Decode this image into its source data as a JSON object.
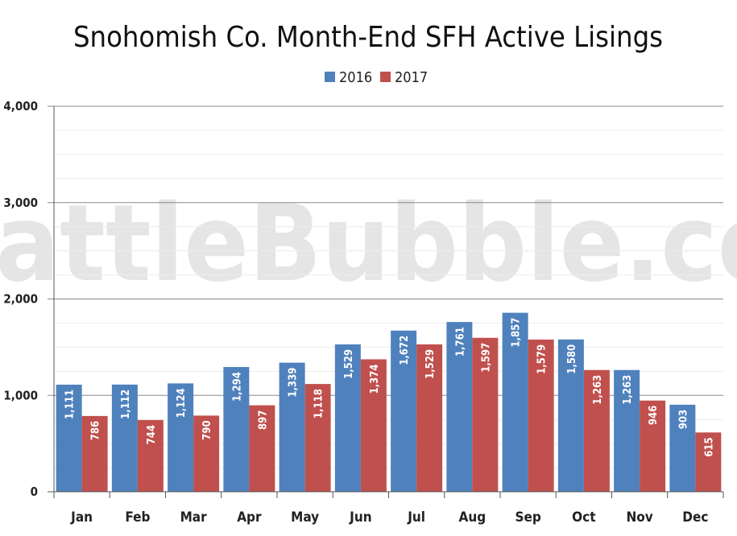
{
  "watermark": "SeattleBubble.com",
  "colors": {
    "2016": "#4f81bd",
    "2017": "#c0504d"
  },
  "chart_data": {
    "type": "bar",
    "title": "Snohomish Co. Month-End SFH Active Lisings",
    "xlabel": "",
    "ylabel": "",
    "ylim": [
      0,
      4000
    ],
    "yticks": [
      0,
      1000,
      2000,
      3000,
      4000
    ],
    "ytick_labels": [
      "0",
      "1,000",
      "2,000",
      "3,000",
      "4,000"
    ],
    "grid": true,
    "legend": "top-center",
    "categories": [
      "Jan",
      "Feb",
      "Mar",
      "Apr",
      "May",
      "Jun",
      "Jul",
      "Aug",
      "Sep",
      "Oct",
      "Nov",
      "Dec"
    ],
    "series": [
      {
        "name": "2016",
        "color": "#4f81bd",
        "values": [
          1111,
          1112,
          1124,
          1294,
          1339,
          1529,
          1672,
          1761,
          1857,
          1580,
          1263,
          903
        ],
        "labels": [
          "1,111",
          "1,112",
          "1,124",
          "1,294",
          "1,339",
          "1,529",
          "1,672",
          "1,761",
          "1,857",
          "1,580",
          "1,263",
          "903"
        ]
      },
      {
        "name": "2017",
        "color": "#c0504d",
        "values": [
          786,
          744,
          790,
          897,
          1118,
          1374,
          1529,
          1597,
          1579,
          1263,
          946,
          615
        ],
        "labels": [
          "786",
          "744",
          "790",
          "897",
          "1,118",
          "1,374",
          "1,529",
          "1,597",
          "1,579",
          "1,263",
          "946",
          "615"
        ]
      }
    ]
  }
}
